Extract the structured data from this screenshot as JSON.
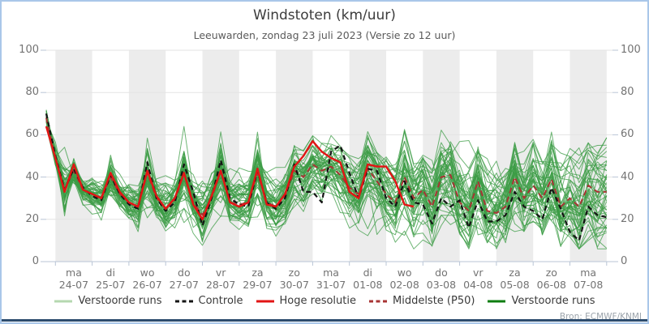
{
  "header": {
    "title": "Windstoten (km/uur)",
    "subtitle": "Leeuwarden, zondag 23 juli 2023 (Versie zo 12 uur)"
  },
  "source": {
    "label": "Bron: ECMWF/KNMI"
  },
  "legend": {
    "items": [
      {
        "label": "Verstoorde runs",
        "color": "#b5d8b0",
        "dashed": false
      },
      {
        "label": "Controle",
        "color": "#141414",
        "dashed": true
      },
      {
        "label": "Hoge resolutie",
        "color": "#e21414",
        "dashed": false
      },
      {
        "label": "Middelste (P50)",
        "color": "#a83434",
        "dashed": true
      },
      {
        "label": "Verstoorde runs",
        "color": "#0e7d10",
        "dashed": false
      }
    ]
  },
  "chart_data": {
    "type": "line",
    "title": "Windstoten (km/uur)",
    "subtitle": "Leeuwarden, zondag 23 juli 2023 (Versie zo 12 uur)",
    "ylabel": "km/uur",
    "ylim": [
      0,
      100
    ],
    "yticks": [
      0,
      20,
      40,
      60,
      80,
      100
    ],
    "grid": true,
    "legend_position": "bottom",
    "x_days": [
      {
        "day": "ma",
        "date": "24-07"
      },
      {
        "day": "di",
        "date": "25-07"
      },
      {
        "day": "wo",
        "date": "26-07"
      },
      {
        "day": "do",
        "date": "27-07"
      },
      {
        "day": "vr",
        "date": "28-07"
      },
      {
        "day": "za",
        "date": "29-07"
      },
      {
        "day": "zo",
        "date": "30-07"
      },
      {
        "day": "ma",
        "date": "31-07"
      },
      {
        "day": "di",
        "date": "01-08"
      },
      {
        "day": "wo",
        "date": "02-08"
      },
      {
        "day": "do",
        "date": "03-08"
      },
      {
        "day": "vr",
        "date": "04-08"
      },
      {
        "day": "za",
        "date": "05-08"
      },
      {
        "day": "zo",
        "date": "06-08"
      },
      {
        "day": "ma",
        "date": "07-08"
      }
    ],
    "time_step_days": 0.25,
    "first_point_offset_days": -0.25,
    "series": {
      "controle": {
        "name": "Controle",
        "color": "#141414",
        "dashed": true,
        "values": [
          70,
          50,
          34,
          44,
          35,
          31,
          29,
          41,
          32,
          27,
          25,
          47,
          30,
          24,
          28,
          46,
          33,
          17,
          30,
          48,
          30,
          27,
          26,
          43,
          28,
          25,
          30,
          46,
          33,
          33,
          28,
          52,
          55,
          42,
          30,
          44,
          43,
          30,
          26,
          38,
          28,
          27,
          18,
          30,
          26,
          29,
          16,
          29,
          19,
          19,
          22,
          33,
          26,
          24,
          20,
          35,
          25,
          14,
          10,
          26,
          22,
          21
        ]
      },
      "hoge_resolutie": {
        "name": "Hoge resolutie",
        "color": "#e21414",
        "dashed": false,
        "values": [
          64,
          49,
          33,
          46,
          34,
          32,
          30,
          42,
          33,
          28,
          26,
          43,
          31,
          25,
          30,
          42,
          27,
          20,
          31,
          43,
          28,
          26,
          28,
          44,
          27,
          26,
          32,
          45,
          50,
          57,
          52,
          49,
          47,
          33,
          30,
          46,
          45,
          45,
          38,
          27,
          26
        ]
      },
      "middelste_p50": {
        "name": "Middelste (P50)",
        "color": "#a83434",
        "dashed": true,
        "values": [
          68,
          49,
          34,
          43,
          34,
          32,
          30,
          40,
          32,
          28,
          26,
          42,
          30,
          25,
          29,
          42,
          28,
          22,
          30,
          43,
          28,
          27,
          28,
          42,
          28,
          26,
          31,
          43,
          40,
          46,
          43,
          45,
          41,
          35,
          32,
          44,
          38,
          32,
          28,
          40,
          30,
          34,
          26,
          40,
          41,
          28,
          24,
          38,
          24,
          23,
          26,
          40,
          30,
          36,
          30,
          39,
          26,
          30,
          26,
          36,
          33,
          33
        ]
      }
    },
    "ensemble": {
      "name": "Verstoorde runs",
      "count": 50,
      "color": "#3c9c46",
      "opacity": 0.75,
      "seed": 20230723,
      "sigma_per_day": [
        1.5,
        3,
        4,
        5,
        5.5,
        6,
        6.5,
        7,
        8,
        9,
        10,
        11,
        12,
        13,
        13.5,
        14
      ]
    }
  },
  "style_colors": {
    "band": "#ececec",
    "grid": "#e3e3e3",
    "axis": "#b9c5d6",
    "tick_label": "#737373"
  }
}
